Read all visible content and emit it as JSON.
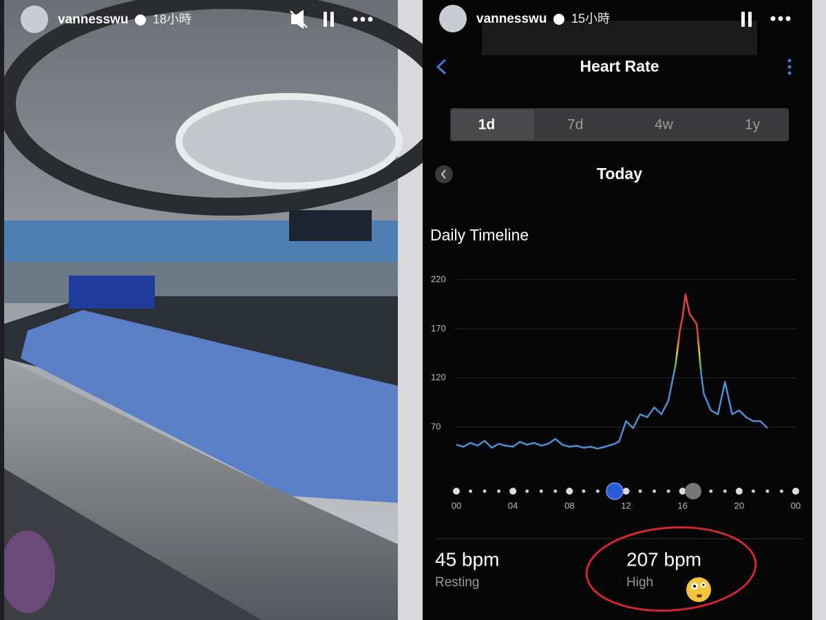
{
  "left_story": {
    "username": "vannesswu",
    "time": "18小時"
  },
  "right_story": {
    "username": "vannesswu",
    "time": "15小時"
  },
  "header": {
    "title": "Heart Rate"
  },
  "tabs": [
    "1d",
    "7d",
    "4w",
    "1y"
  ],
  "date_label": "Today",
  "chart_data": {
    "type": "line",
    "title": "Daily Timeline",
    "x": [
      0,
      0.5,
      1,
      1.5,
      2,
      2.5,
      3,
      3.5,
      4,
      4.5,
      5,
      5.5,
      6,
      6.5,
      7,
      7.5,
      8,
      8.5,
      9,
      9.5,
      10,
      10.5,
      11,
      11.5,
      12,
      12.5,
      13,
      13.5,
      14,
      14.5,
      15,
      15.5,
      15.8,
      16,
      16.2,
      16.5,
      17,
      17.3,
      17.5,
      18,
      18.5,
      19,
      19.5,
      20,
      20.5,
      21,
      21.5,
      22
    ],
    "series": [
      {
        "color": "#4a90d9",
        "values": [
          52,
          50,
          54,
          51,
          56,
          49,
          53,
          51,
          50,
          55,
          52,
          54,
          51,
          53,
          58,
          52,
          50,
          51,
          49,
          50,
          48,
          50,
          52,
          55,
          76,
          69,
          83,
          80,
          90,
          83,
          97,
          133,
          168,
          182,
          205,
          185,
          175,
          126,
          104,
          87,
          83,
          116,
          83,
          87,
          80,
          76,
          76,
          69
        ]
      }
    ],
    "xlim": [
      0,
      24
    ],
    "xticks": [
      {
        "value": 0,
        "label": "00"
      },
      {
        "value": 4,
        "label": "04"
      },
      {
        "value": 8,
        "label": "08"
      },
      12,
      16,
      20,
      {
        "value": 24,
        "label": "00"
      }
    ],
    "ylim": [
      30,
      220
    ],
    "yticks": [
      70,
      120,
      170,
      220
    ],
    "grid": true
  },
  "stats": [
    {
      "value": "45 bpm",
      "label": "Resting"
    },
    {
      "value": "207 bpm",
      "label": "High"
    }
  ]
}
